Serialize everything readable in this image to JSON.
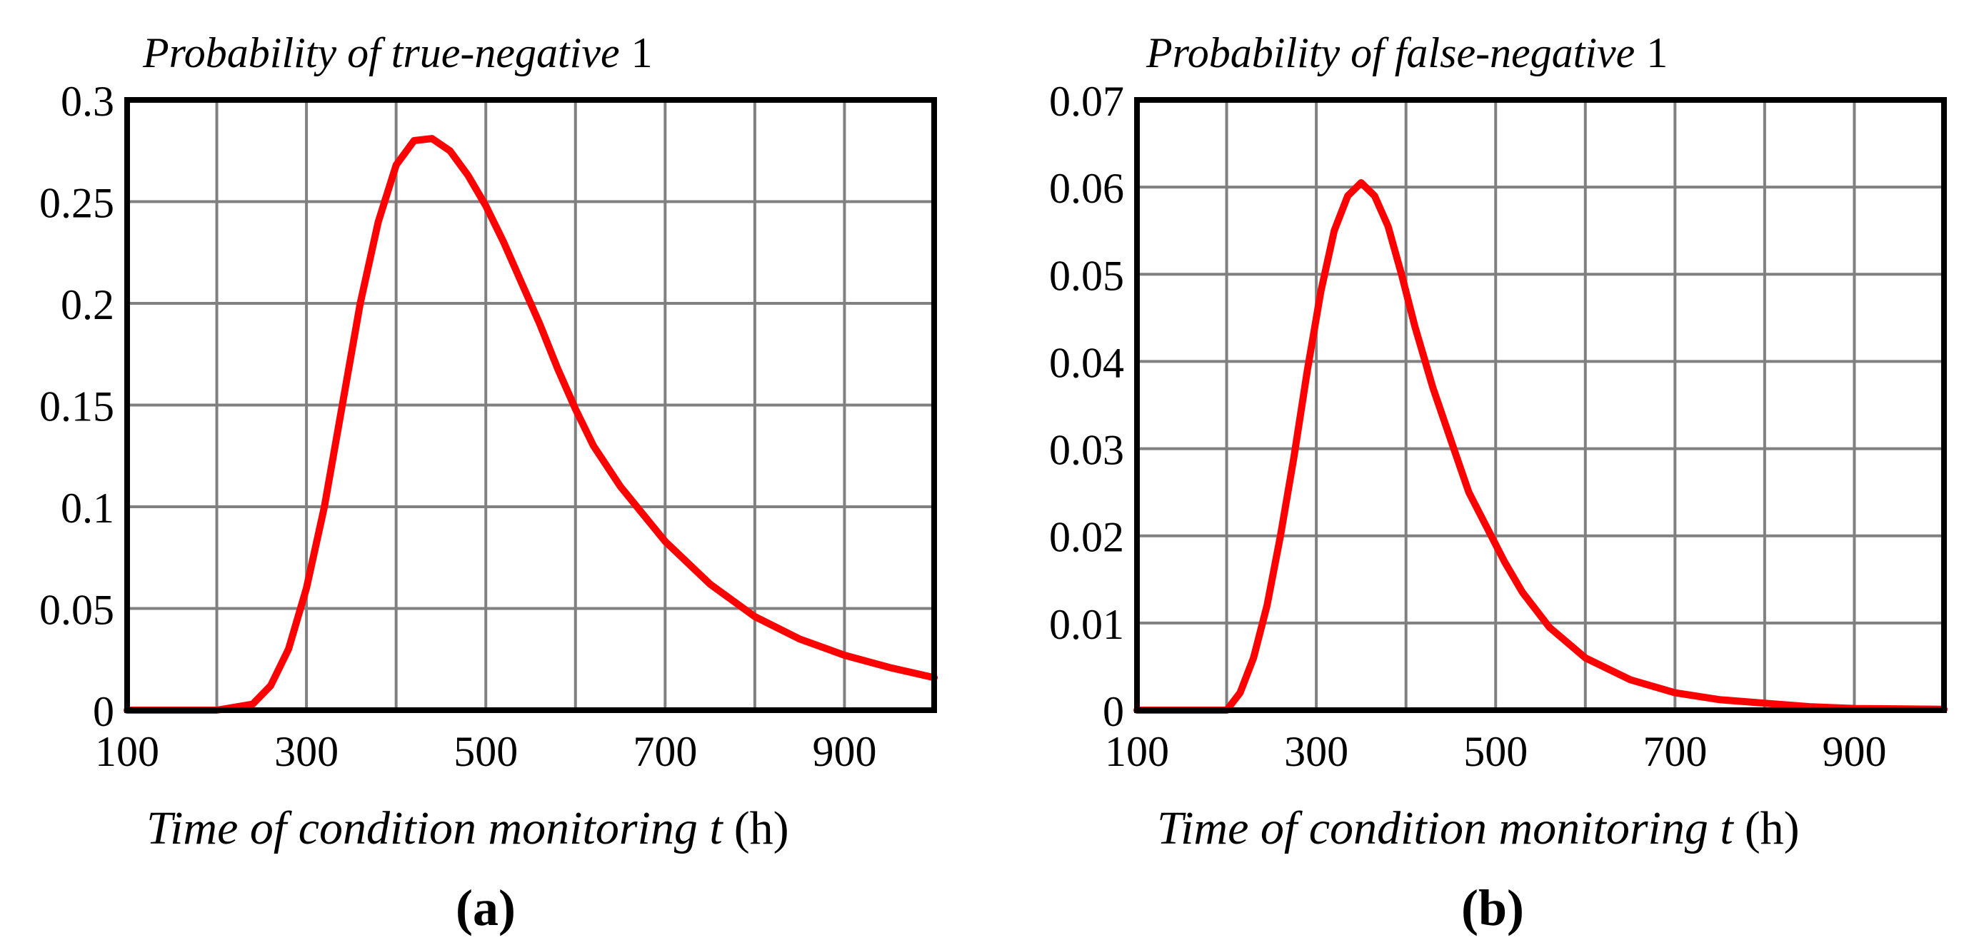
{
  "chart_data": [
    {
      "type": "line",
      "panel_label": "(a)",
      "ylabel_italic": "Probability of true-negative",
      "ylabel_suffix": "1",
      "xlabel_italic": "Time of condition monitoring t",
      "xlabel_suffix": "(h)",
      "xlim": [
        100,
        1000
      ],
      "ylim": [
        0,
        0.3
      ],
      "x_ticks": [
        100,
        300,
        500,
        700,
        900
      ],
      "x_tick_labels": [
        "100",
        "300",
        "500",
        "700",
        "900"
      ],
      "y_ticks": [
        0,
        0.05,
        0.1,
        0.15,
        0.2,
        0.25,
        0.3
      ],
      "y_tick_labels": [
        "0",
        "0.05",
        "0.1",
        "0.15",
        "0.2",
        "0.25",
        "0.3"
      ],
      "x_grid": [
        100,
        200,
        300,
        400,
        500,
        600,
        700,
        800,
        900,
        1000
      ],
      "grid": true,
      "series": [
        {
          "name": "Probability of true-negative 1",
          "color": "#ff0000",
          "x": [
            100,
            200,
            240,
            260,
            280,
            300,
            320,
            340,
            360,
            380,
            400,
            420,
            440,
            460,
            480,
            500,
            520,
            540,
            560,
            580,
            600,
            620,
            650,
            700,
            750,
            800,
            850,
            900,
            950,
            1000
          ],
          "y": [
            0,
            0,
            0.003,
            0.012,
            0.03,
            0.06,
            0.1,
            0.15,
            0.2,
            0.24,
            0.268,
            0.28,
            0.281,
            0.275,
            0.263,
            0.248,
            0.23,
            0.21,
            0.19,
            0.168,
            0.148,
            0.13,
            0.11,
            0.083,
            0.062,
            0.046,
            0.035,
            0.027,
            0.021,
            0.016
          ]
        }
      ]
    },
    {
      "type": "line",
      "panel_label": "(b)",
      "ylabel_italic": "Probability of false-negative",
      "ylabel_suffix": "1",
      "xlabel_italic": "Time of condition monitoring t",
      "xlabel_suffix": "(h)",
      "xlim": [
        100,
        1000
      ],
      "ylim": [
        0,
        0.07
      ],
      "x_ticks": [
        100,
        300,
        500,
        700,
        900
      ],
      "x_tick_labels": [
        "100",
        "300",
        "500",
        "700",
        "900"
      ],
      "y_ticks": [
        0,
        0.01,
        0.02,
        0.03,
        0.04,
        0.05,
        0.06,
        0.07
      ],
      "y_tick_labels": [
        "0",
        "0.01",
        "0.02",
        "0.03",
        "0.04",
        "0.05",
        "0.06",
        "0.07"
      ],
      "x_grid": [
        100,
        200,
        300,
        400,
        500,
        600,
        700,
        800,
        900,
        1000
      ],
      "grid": true,
      "series": [
        {
          "name": "Probability of false-negative 1",
          "color": "#ff0000",
          "x": [
            100,
            200,
            215,
            230,
            245,
            260,
            275,
            290,
            305,
            320,
            335,
            350,
            365,
            380,
            395,
            410,
            430,
            450,
            470,
            490,
            510,
            530,
            560,
            600,
            650,
            700,
            750,
            800,
            850,
            900,
            1000
          ],
          "y": [
            0,
            0,
            0.002,
            0.006,
            0.012,
            0.02,
            0.029,
            0.039,
            0.048,
            0.055,
            0.059,
            0.0605,
            0.059,
            0.0555,
            0.05,
            0.044,
            0.037,
            0.031,
            0.025,
            0.021,
            0.017,
            0.0135,
            0.0095,
            0.006,
            0.0035,
            0.002,
            0.0012,
            0.0008,
            0.0004,
            0.0002,
            0.0001
          ]
        }
      ]
    }
  ]
}
